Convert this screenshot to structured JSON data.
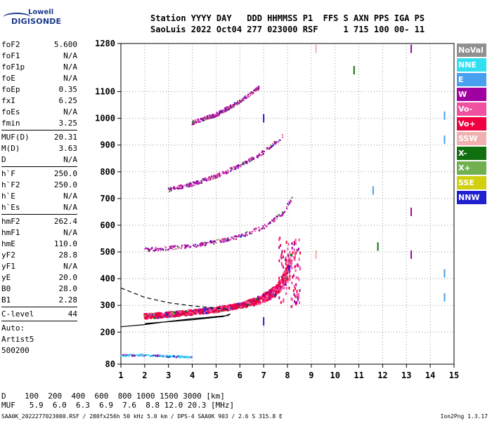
{
  "logo": {
    "line1": "Lowell",
    "line2": "DIGISONDE"
  },
  "header": {
    "line1": "Station YYYY DAY   DDD HHMMSS P1  FFS S AXN PPS IGA PS",
    "line2": "SaoLuis 2022 Oct04 277 023000 RSF     1 715 100 00- 11"
  },
  "params_a": [
    {
      "name": "foF2",
      "value": "5.600"
    },
    {
      "name": "foF1",
      "value": "N/A"
    },
    {
      "name": "foF1p",
      "value": "N/A"
    },
    {
      "name": "foE",
      "value": "N/A"
    },
    {
      "name": "foEp",
      "value": "0.35"
    },
    {
      "name": "fxI",
      "value": "6.25"
    },
    {
      "name": "foEs",
      "value": "N/A"
    },
    {
      "name": "fmin",
      "value": "3.25"
    }
  ],
  "params_b": [
    {
      "name": "MUF(D)",
      "value": "20.31"
    },
    {
      "name": "M(D)",
      "value": "3.63"
    },
    {
      "name": "D",
      "value": "N/A"
    }
  ],
  "params_c": [
    {
      "name": "h`F",
      "value": "250.0"
    },
    {
      "name": "h`F2",
      "value": "250.0"
    },
    {
      "name": "h`E",
      "value": "N/A"
    },
    {
      "name": "h`Es",
      "value": "N/A"
    }
  ],
  "params_d": [
    {
      "name": "hmF2",
      "value": "262.4"
    },
    {
      "name": "hmF1",
      "value": "N/A"
    },
    {
      "name": "hmE",
      "value": "110.0"
    },
    {
      "name": "yF2",
      "value": "28.8"
    },
    {
      "name": "yF1",
      "value": "N/A"
    },
    {
      "name": "yE",
      "value": "20.0"
    },
    {
      "name": "B0",
      "value": "28.0"
    },
    {
      "name": "B1",
      "value": "2.28"
    }
  ],
  "params_e": [
    {
      "name": "C-level",
      "value": "44"
    }
  ],
  "auto": {
    "l1": "Auto:",
    "l2": "Artist5",
    "l3": "500200"
  },
  "legend": [
    {
      "label": "NoVal",
      "color": "#909090"
    },
    {
      "label": "NNE",
      "color": "#30e0f0"
    },
    {
      "label": "E",
      "color": "#4aa0f0"
    },
    {
      "label": "W",
      "color": "#a000a0"
    },
    {
      "label": "Vo-",
      "color": "#f050a0"
    },
    {
      "label": "Vo+",
      "color": "#f00040"
    },
    {
      "label": "SSW",
      "color": "#f0b0b0"
    },
    {
      "label": "X-",
      "color": "#107010"
    },
    {
      "label": "X+",
      "color": "#70b050"
    },
    {
      "label": "SSE",
      "color": "#d0d010"
    },
    {
      "label": "NNW",
      "color": "#2020d0"
    }
  ],
  "muf_table": {
    "d_line": "D    100  200  400  600  800 1000 1500 3000 [km]",
    "muf_line": "MUF   5.9  6.0  6.3  6.9  7.6  8.8 12.0 20.3 [MHz]"
  },
  "footer": {
    "left": "SAA0K_2022277023000.RSF / 280fx256h 50 kHz 5.0 km / DPS-4 SAA0K 903 / 2.6 S 315.8 E",
    "right": "Ion2Png 1.3.17"
  },
  "chart_data": {
    "type": "scatter",
    "title": "",
    "xlabel": "",
    "ylabel": "",
    "xlim": [
      1,
      15
    ],
    "ylim": [
      80,
      1280
    ],
    "x_ticks": [
      1,
      2,
      3,
      4,
      5,
      6,
      7,
      8,
      9,
      10,
      11,
      12,
      13,
      14,
      15
    ],
    "y_ticks": [
      80,
      200,
      300,
      400,
      500,
      600,
      700,
      800,
      900,
      1000,
      1100,
      1280
    ],
    "grid": "dotted",
    "series": [
      {
        "mode": "O-trace F echo (1st hop)",
        "color": "#f00040",
        "x": [
          2.0,
          2.5,
          3.0,
          3.5,
          4.0,
          4.5,
          5.0,
          5.5,
          6.0,
          6.5,
          7.0,
          7.5,
          7.8,
          8.0,
          8.2
        ],
        "y": [
          255,
          258,
          262,
          266,
          270,
          275,
          280,
          287,
          295,
          305,
          320,
          345,
          380,
          420,
          480
        ]
      },
      {
        "mode": "2nd hop",
        "color": "#a000a0",
        "x": [
          2.0,
          3.0,
          4.0,
          5.0,
          6.0,
          7.0,
          7.8,
          8.2
        ],
        "y": [
          505,
          512,
          520,
          535,
          555,
          590,
          640,
          700
        ]
      },
      {
        "mode": "3rd hop",
        "color": "#a000a0",
        "x": [
          3.0,
          4.0,
          5.0,
          6.0,
          7.0,
          7.8
        ],
        "y": [
          730,
          750,
          780,
          820,
          870,
          930
        ]
      },
      {
        "mode": "4th hop",
        "color": "#a000a0",
        "x": [
          4.0,
          5.0,
          6.0,
          6.8
        ],
        "y": [
          980,
          1010,
          1060,
          1110
        ]
      },
      {
        "mode": "E-region echo",
        "color": "#30e0f0",
        "x": [
          1.0,
          1.5,
          2.0,
          2.5,
          3.0,
          3.5,
          4.0
        ],
        "y": [
          110,
          112,
          112,
          110,
          108,
          106,
          105
        ]
      }
    ],
    "profile_curve": {
      "x": [
        1.0,
        2.0,
        3.0,
        4.0,
        5.0,
        5.5,
        5.6
      ],
      "y": [
        220,
        228,
        240,
        250,
        258,
        262,
        268
      ]
    },
    "dashed_curve": {
      "x": [
        1.0,
        2.0,
        3.0,
        4.0,
        5.0,
        5.6
      ],
      "y": [
        365,
        330,
        310,
        298,
        290,
        285
      ]
    }
  }
}
